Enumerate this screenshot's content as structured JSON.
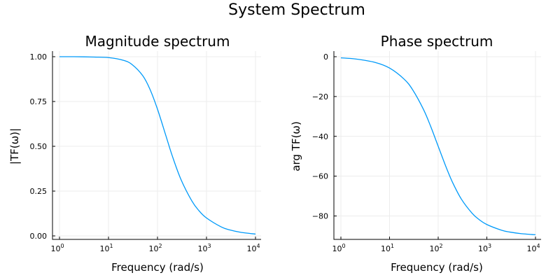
{
  "figure": {
    "suptitle": "System Spectrum"
  },
  "chart_data": [
    {
      "type": "line",
      "title": "Magnitude spectrum",
      "xlabel": "Frequency (rad/s)",
      "ylabel": "|TF(ω)|",
      "xscale": "log",
      "xlim": [
        1,
        10000
      ],
      "ylim": [
        0,
        1
      ],
      "xticks": [
        {
          "base": "10",
          "exp": "0"
        },
        {
          "base": "10",
          "exp": "1"
        },
        {
          "base": "10",
          "exp": "2"
        },
        {
          "base": "10",
          "exp": "3"
        },
        {
          "base": "10",
          "exp": "4"
        }
      ],
      "yticks": [
        "0.00",
        "0.25",
        "0.50",
        "0.75",
        "1.00"
      ],
      "grid": true,
      "legend": "none",
      "color": "#009af9",
      "x": [
        1,
        2,
        5,
        10,
        20,
        30,
        50,
        70,
        100,
        150,
        200,
        300,
        500,
        700,
        1000,
        2000,
        3000,
        5000,
        10000
      ],
      "y": [
        1.0,
        1.0,
        0.998,
        0.995,
        0.98,
        0.957,
        0.894,
        0.819,
        0.707,
        0.555,
        0.447,
        0.316,
        0.196,
        0.141,
        0.1,
        0.05,
        0.033,
        0.02,
        0.01
      ]
    },
    {
      "type": "line",
      "title": "Phase spectrum",
      "xlabel": "Frequency (rad/s)",
      "ylabel": "arg TF(ω)",
      "xscale": "log",
      "xlim": [
        1,
        10000
      ],
      "ylim": [
        -90,
        0
      ],
      "xticks": [
        {
          "base": "10",
          "exp": "0"
        },
        {
          "base": "10",
          "exp": "1"
        },
        {
          "base": "10",
          "exp": "2"
        },
        {
          "base": "10",
          "exp": "3"
        },
        {
          "base": "10",
          "exp": "4"
        }
      ],
      "yticks": [
        "0",
        "−20",
        "−40",
        "−60",
        "−80"
      ],
      "grid": true,
      "legend": "none",
      "color": "#009af9",
      "x": [
        1,
        2,
        5,
        10,
        20,
        30,
        50,
        70,
        100,
        150,
        200,
        300,
        500,
        700,
        1000,
        2000,
        3000,
        5000,
        10000
      ],
      "y": [
        -0.57,
        -1.15,
        -2.86,
        -5.71,
        -11.31,
        -16.7,
        -26.57,
        -34.99,
        -45.0,
        -56.31,
        -63.43,
        -71.57,
        -78.69,
        -81.87,
        -84.29,
        -87.14,
        -88.09,
        -88.85,
        -89.43
      ]
    }
  ]
}
